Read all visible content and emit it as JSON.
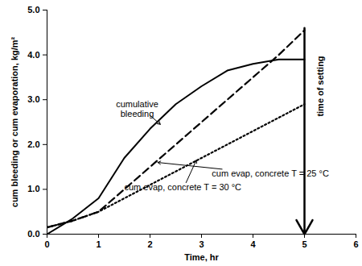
{
  "chart_data": {
    "type": "line",
    "x_label": "Time, hr",
    "y_label": "cum bleeding or cum evaporation, kg/m²",
    "x": [
      0,
      0.5,
      1,
      1.5,
      2,
      2.5,
      3,
      3.5,
      4,
      4.5,
      5
    ],
    "series": [
      {
        "name": "cumulative bleeding",
        "color": "#000000",
        "line_style": "solid",
        "values": [
          0,
          0.35,
          0.8,
          1.7,
          2.35,
          2.9,
          3.3,
          3.65,
          3.8,
          3.9,
          3.9
        ]
      },
      {
        "name": "cum evap, concrete T = 25 °C",
        "color": "#000000",
        "line_style": "dashed",
        "values": [
          0.15,
          0.3,
          0.5,
          1.0,
          1.5,
          2.0,
          2.5,
          3.0,
          3.5,
          4.0,
          4.55
        ]
      },
      {
        "name": "cum evap, concrete T = 30 °C",
        "color": "#000000",
        "line_style": "dotted",
        "values": [
          0.15,
          0.3,
          0.5,
          0.8,
          1.1,
          1.4,
          1.7,
          2.0,
          2.3,
          2.6,
          2.9
        ]
      }
    ],
    "annotations": [
      {
        "text": "cumulative\nbleeding",
        "x": 1.75,
        "y": 2.8,
        "arrow": [
          [
            2.0,
            2.65
          ],
          [
            2.2,
            2.45
          ]
        ]
      },
      {
        "text": "cum evap, concrete T = 25 °C",
        "x": 3.2,
        "y": 1.35,
        "arrow": [
          [
            3.4,
            1.45
          ],
          [
            2.15,
            1.6
          ]
        ]
      },
      {
        "text": "cum evap, concrete T = 30 °C",
        "x": 1.5,
        "y": 1.05,
        "arrow": [
          [
            2.7,
            1.15
          ],
          [
            2.9,
            1.65
          ]
        ]
      },
      {
        "text": "time of setting",
        "x": 5.3,
        "y": 3.3,
        "arrow": [
          [
            5,
            4.6
          ],
          [
            5,
            0
          ]
        ]
      }
    ],
    "xlim": [
      0,
      6
    ],
    "xticks": [
      0,
      1,
      2,
      3,
      4,
      5,
      6
    ],
    "ylim": [
      0,
      5
    ],
    "yticks": [
      {
        "value": 0,
        "label": "0.0"
      },
      {
        "value": 1,
        "label": "1.0"
      },
      {
        "value": 2,
        "label": "2.0"
      },
      {
        "value": 3,
        "label": "3.0"
      },
      {
        "value": 4,
        "label": "4.0"
      },
      {
        "value": 5,
        "label": "5.0"
      }
    ],
    "grid": false
  }
}
